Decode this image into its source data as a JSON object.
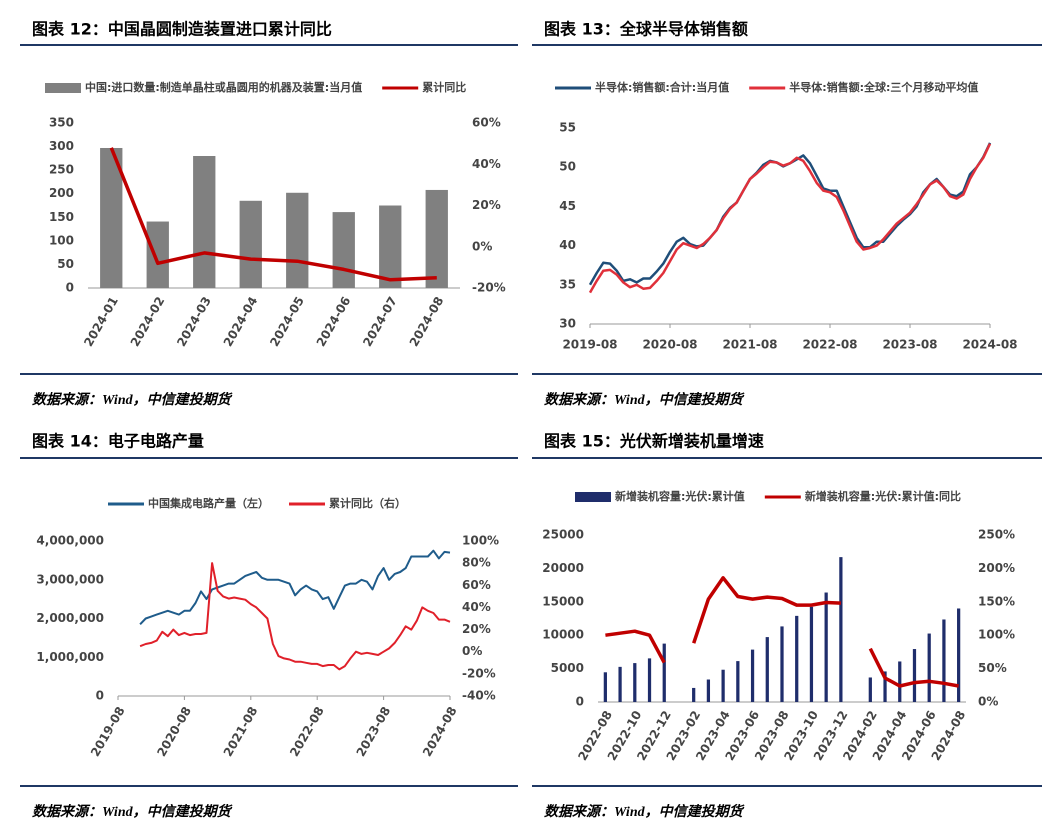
{
  "chart_data": [
    {
      "type": "combo",
      "title": "图表 12：中国晶圆制造装置进口累计同比",
      "source": "数据来源：Wind，中信建投期货",
      "categories": [
        "2024-01",
        "2024-02",
        "2024-03",
        "2024-04",
        "2024-05",
        "2024-06",
        "2024-07",
        "2024-08"
      ],
      "series": [
        {
          "name": "中国:进口数量:制造单晶柱或晶圆用的机器及装置:当月值",
          "type": "bar",
          "color": "#808080",
          "values": [
            297,
            141,
            280,
            185,
            202,
            161,
            175,
            208
          ]
        },
        {
          "name": "累计同比",
          "type": "line",
          "axis": "y2",
          "color": "#c00000",
          "values": [
            48,
            -8,
            -3,
            -6,
            -7,
            -11,
            -16,
            -15
          ]
        }
      ],
      "ylim": [
        0,
        350
      ],
      "yticks": [
        0,
        50,
        100,
        150,
        200,
        250,
        300,
        350
      ],
      "y2lim": [
        -20,
        60
      ],
      "y2ticks": [
        {
          "value": -20,
          "label": "-20%"
        },
        {
          "value": 0,
          "label": "0%"
        },
        {
          "value": 20,
          "label": "20%"
        },
        {
          "value": 40,
          "label": "40%"
        },
        {
          "value": 60,
          "label": "60%"
        }
      ]
    },
    {
      "type": "line",
      "title": "图表 13：全球半导体销售额",
      "source": "数据来源：Wind，中信建投期货",
      "x": [
        "2019-08",
        "2019-09",
        "2019-10",
        "2019-11",
        "2019-12",
        "2020-01",
        "2020-02",
        "2020-03",
        "2020-04",
        "2020-05",
        "2020-06",
        "2020-07",
        "2020-08",
        "2020-09",
        "2020-10",
        "2020-11",
        "2020-12",
        "2021-01",
        "2021-02",
        "2021-03",
        "2021-04",
        "2021-05",
        "2021-06",
        "2021-07",
        "2021-08",
        "2021-09",
        "2021-10",
        "2021-11",
        "2021-12",
        "2022-01",
        "2022-02",
        "2022-03",
        "2022-04",
        "2022-05",
        "2022-06",
        "2022-07",
        "2022-08",
        "2022-09",
        "2022-10",
        "2022-11",
        "2022-12",
        "2023-01",
        "2023-02",
        "2023-03",
        "2023-04",
        "2023-05",
        "2023-06",
        "2023-07",
        "2023-08",
        "2023-09",
        "2023-10",
        "2023-11",
        "2023-12",
        "2024-01",
        "2024-02",
        "2024-03",
        "2024-04",
        "2024-05",
        "2024-06",
        "2024-07",
        "2024-08"
      ],
      "xlim": [
        "2019-08",
        "2024-08"
      ],
      "xticks": [
        "2019-08",
        "2020-08",
        "2021-08",
        "2022-08",
        "2023-08",
        "2024-08"
      ],
      "series": [
        {
          "name": "半导体:销售额:合计:当月值",
          "type": "line",
          "color": "#1f4e79",
          "values": [
            35.0,
            36.5,
            37.8,
            37.7,
            36.8,
            35.5,
            35.7,
            35.3,
            35.8,
            35.8,
            36.7,
            37.7,
            39.2,
            40.5,
            41.0,
            40.2,
            39.9,
            40.0,
            41.0,
            42.0,
            43.7,
            44.8,
            45.5,
            47.0,
            48.5,
            49.3,
            50.3,
            50.8,
            50.6,
            50.1,
            50.5,
            51.0,
            51.5,
            50.5,
            48.9,
            47.3,
            47.0,
            47.0,
            45.0,
            43.0,
            41.0,
            39.8,
            39.8,
            40.5,
            40.5,
            41.5,
            42.5,
            43.3,
            44.0,
            45.0,
            46.8,
            47.8,
            48.5,
            47.5,
            46.5,
            46.3,
            46.9,
            49.1,
            50.0,
            51.3,
            53.1
          ]
        },
        {
          "name": "半导体:销售额:全球:三个月移动平均值",
          "type": "line",
          "color": "#e0303a",
          "values": [
            34.0,
            35.5,
            36.8,
            36.9,
            36.3,
            35.3,
            34.7,
            35.0,
            34.5,
            34.6,
            35.5,
            36.5,
            38.0,
            39.5,
            40.3,
            40.0,
            39.7,
            40.2,
            41.0,
            42.0,
            43.5,
            44.7,
            45.5,
            47.0,
            48.5,
            49.2,
            50.0,
            50.7,
            50.6,
            50.2,
            50.5,
            51.2,
            50.8,
            49.5,
            48.0,
            47.0,
            46.8,
            46.2,
            44.5,
            42.5,
            40.5,
            39.5,
            39.7,
            40.0,
            40.8,
            41.8,
            42.8,
            43.5,
            44.2,
            45.3,
            46.5,
            47.8,
            48.3,
            47.5,
            46.3,
            46.0,
            46.5,
            48.5,
            50.0,
            51.2,
            53.0
          ]
        }
      ],
      "ylim": [
        30,
        55
      ],
      "yticks": [
        30,
        35,
        40,
        45,
        50,
        55
      ]
    },
    {
      "type": "line",
      "title": "图表 14：电子电路产量",
      "source": "数据来源：Wind，中信建投期货",
      "x": [
        "2019-12",
        "2020-01",
        "2020-02",
        "2020-03",
        "2020-04",
        "2020-05",
        "2020-06",
        "2020-07",
        "2020-08",
        "2020-09",
        "2020-10",
        "2020-11",
        "2020-12",
        "2021-01",
        "2021-02",
        "2021-03",
        "2021-04",
        "2021-05",
        "2021-06",
        "2021-07",
        "2021-08",
        "2021-09",
        "2021-10",
        "2021-11",
        "2021-12",
        "2022-01",
        "2022-02",
        "2022-03",
        "2022-04",
        "2022-05",
        "2022-06",
        "2022-07",
        "2022-08",
        "2022-09",
        "2022-10",
        "2022-11",
        "2022-12",
        "2023-01",
        "2023-02",
        "2023-03",
        "2023-04",
        "2023-05",
        "2023-06",
        "2023-07",
        "2023-08",
        "2023-09",
        "2023-10",
        "2023-11",
        "2023-12",
        "2024-01",
        "2024-02",
        "2024-03",
        "2024-04",
        "2024-05",
        "2024-06",
        "2024-07",
        "2024-08"
      ],
      "xlim": [
        "2019-08",
        "2024-08"
      ],
      "xticks": [
        "2019-08",
        "2020-08",
        "2021-08",
        "2022-08",
        "2023-08",
        "2024-08"
      ],
      "series": [
        {
          "name": "中国集成电路产量（左）",
          "type": "line",
          "color": "#1f5c8b",
          "values": [
            1850000,
            2000000,
            2050000,
            2100000,
            2150000,
            2200000,
            2150000,
            2100000,
            2200000,
            2200000,
            2400000,
            2700000,
            2500000,
            2750000,
            2800000,
            2850000,
            2900000,
            2900000,
            3000000,
            3100000,
            3150000,
            3200000,
            3050000,
            3000000,
            3000000,
            3000000,
            2950000,
            2900000,
            2600000,
            2750000,
            2850000,
            2750000,
            2700000,
            2500000,
            2550000,
            2250000,
            2550000,
            2850000,
            2900000,
            2900000,
            3000000,
            2950000,
            2750000,
            3100000,
            3300000,
            3000000,
            3150000,
            3200000,
            3300000,
            3600000,
            3600000,
            3600000,
            3600000,
            3750000,
            3550000,
            3720000,
            3700000
          ]
        },
        {
          "name": "累计同比（右）",
          "type": "line",
          "axis": "y2",
          "color": "#e0202a",
          "values": [
            5,
            7,
            8,
            10,
            18,
            14,
            20,
            15,
            17,
            15,
            16,
            16,
            17,
            80,
            55,
            50,
            48,
            49,
            48,
            47,
            43,
            40,
            35,
            30,
            7,
            -4,
            -6,
            -7,
            -9,
            -9,
            -10,
            -11,
            -11,
            -13,
            -12,
            -12,
            -16,
            -13,
            -6,
            0,
            -2,
            -1,
            -2,
            -3,
            0,
            3,
            8,
            15,
            23,
            20,
            28,
            40,
            37,
            35,
            29,
            29,
            27
          ]
        }
      ],
      "ylim": [
        0,
        4000000
      ],
      "yticks": [
        0,
        {
          "value": 1000000,
          "label": "1,000,000"
        },
        {
          "value": 2000000,
          "label": "2,000,000"
        },
        {
          "value": 3000000,
          "label": "3,000,000"
        },
        {
          "value": 4000000,
          "label": "4,000,000"
        }
      ],
      "y2lim": [
        -40,
        100
      ],
      "y2ticks": [
        {
          "value": -40,
          "label": "-40%"
        },
        {
          "value": -20,
          "label": "-20%"
        },
        {
          "value": 0,
          "label": "0%"
        },
        {
          "value": 20,
          "label": "20%"
        },
        {
          "value": 40,
          "label": "40%"
        },
        {
          "value": 60,
          "label": "60%"
        },
        {
          "value": 80,
          "label": "80%"
        },
        {
          "value": 100,
          "label": "100%"
        }
      ]
    },
    {
      "type": "combo",
      "title": "图表 15：光伏新增装机量增速",
      "source": "数据来源：Wind，中信建投期货",
      "categories": [
        "2022-08",
        null,
        "2022-10",
        null,
        "2022-12",
        null,
        "2023-02",
        null,
        "2023-04",
        null,
        "2023-06",
        null,
        "2023-08",
        null,
        "2023-10",
        null,
        "2023-12",
        null,
        "2024-02",
        null,
        "2024-04",
        null,
        "2024-06",
        null,
        "2024-08"
      ],
      "series": [
        {
          "name": "新增装机容量:光伏:累计值",
          "type": "bar",
          "color": "#1f2d6b",
          "values": [
            4447,
            5260,
            5824,
            6530,
            8741,
            null,
            2106,
            3366,
            4831,
            6122,
            7842,
            9716,
            11316,
            12894,
            14256,
            16388,
            21688,
            null,
            3670,
            4574,
            6068,
            7928,
            10248,
            12353,
            13999
          ]
        },
        {
          "name": "新增装机容量:光伏:累计值:同比",
          "type": "line",
          "axis": "y2",
          "color": "#c00000",
          "values": [
            100,
            103,
            106,
            100,
            59,
            null,
            88,
            154,
            186,
            158,
            154,
            157,
            155,
            145,
            145,
            149,
            148,
            null,
            80,
            36,
            24,
            29,
            31,
            28,
            24
          ]
        }
      ],
      "ylim": [
        0,
        25000
      ],
      "yticks": [
        0,
        5000,
        10000,
        15000,
        20000,
        25000
      ],
      "y2lim": [
        0,
        250
      ],
      "y2ticks": [
        {
          "value": 0,
          "label": "0%"
        },
        {
          "value": 50,
          "label": "50%"
        },
        {
          "value": 100,
          "label": "100%"
        },
        {
          "value": 150,
          "label": "150%"
        },
        {
          "value": 200,
          "label": "200%"
        },
        {
          "value": 250,
          "label": "250%"
        }
      ]
    }
  ]
}
